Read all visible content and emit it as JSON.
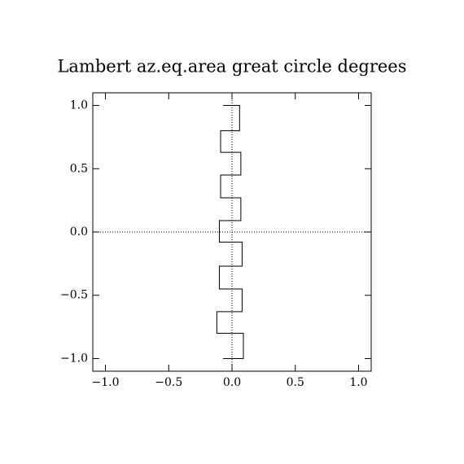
{
  "chart_data": {
    "type": "line",
    "title": "Lambert az.eq.area great circle degrees",
    "series": [
      {
        "color": "#000000",
        "x": [
          -0.07,
          0.06,
          0.06,
          -0.09,
          -0.09,
          0.07,
          0.07,
          -0.09,
          -0.09,
          0.07,
          0.07,
          -0.1,
          -0.1,
          0.08,
          0.08,
          -0.1,
          -0.1,
          0.08,
          0.08,
          -0.12,
          -0.12,
          0.09,
          0.09,
          -0.07
        ],
        "y": [
          1.0,
          1.0,
          0.8,
          0.8,
          0.63,
          0.63,
          0.45,
          0.45,
          0.27,
          0.27,
          0.09,
          0.09,
          -0.08,
          -0.08,
          -0.27,
          -0.27,
          -0.45,
          -0.45,
          -0.63,
          -0.63,
          -0.8,
          -0.8,
          -1.0,
          -1.0
        ]
      }
    ],
    "xlim": [
      -1.1,
      1.1
    ],
    "ylim": [
      -1.1,
      1.1
    ],
    "xticks": [
      {
        "value": -1,
        "label": "−1.0"
      },
      {
        "value": -0.5,
        "label": "−0.5"
      },
      {
        "value": 0,
        "label": "0.0"
      },
      0.5,
      {
        "value": 1,
        "label": "1.0"
      }
    ],
    "yticks": [
      {
        "value": -1,
        "label": "−1.0"
      },
      {
        "value": -0.5,
        "label": "−0.5"
      },
      {
        "value": 0,
        "label": "0.0"
      },
      0.5,
      {
        "value": 1,
        "label": "1.0"
      }
    ],
    "zero_lines": true
  }
}
